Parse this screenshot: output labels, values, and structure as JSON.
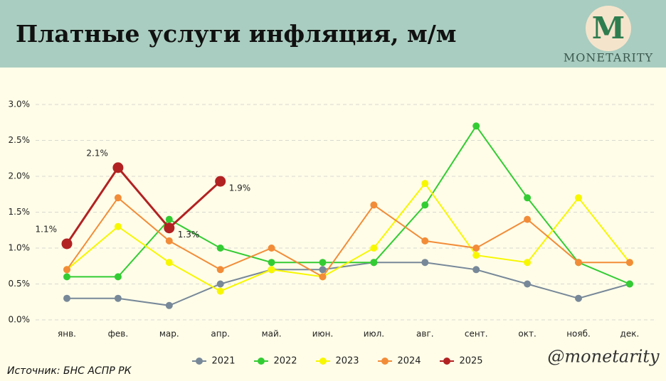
{
  "header": {
    "title": "Платные услуги инфляция, м/м"
  },
  "brand": {
    "letter": "M",
    "name": "MONETARITY",
    "handle": "@monetarity"
  },
  "footer": {
    "source": "Источник: БНС АСПР РК"
  },
  "chart_data": {
    "type": "line",
    "categories": [
      "янв.",
      "фев.",
      "мар.",
      "апр.",
      "май.",
      "июн.",
      "июл.",
      "авг.",
      "сент.",
      "окт.",
      "нояб.",
      "дек."
    ],
    "ylim": [
      0,
      3
    ],
    "yticks": [
      {
        "value": 0,
        "label": "0.0%"
      },
      {
        "value": 0.5,
        "label": "0.5%"
      },
      {
        "value": 1,
        "label": "1.0%"
      },
      {
        "value": 1.5,
        "label": "1.5%"
      },
      {
        "value": 2,
        "label": "2.0%"
      },
      {
        "value": 2.5,
        "label": "2.5%"
      },
      {
        "value": 3,
        "label": "3.0%"
      }
    ],
    "grid": true,
    "legend": "bottom",
    "series": [
      {
        "name": "2021",
        "color": "#778899",
        "values": [
          0.3,
          0.3,
          0.2,
          0.5,
          0.7,
          0.7,
          0.8,
          0.8,
          0.7,
          0.5,
          0.3,
          0.5
        ]
      },
      {
        "name": "2022",
        "color": "#33cc33",
        "values": [
          0.6,
          0.6,
          1.4,
          1.0,
          0.8,
          0.8,
          0.8,
          1.6,
          2.7,
          1.7,
          0.8,
          0.5
        ]
      },
      {
        "name": "2023",
        "color": "#f7f700",
        "values": [
          0.7,
          1.3,
          0.8,
          0.4,
          0.7,
          0.6,
          1.0,
          1.9,
          0.9,
          0.8,
          1.7,
          0.8
        ]
      },
      {
        "name": "2024",
        "color": "#f28c38",
        "values": [
          0.7,
          1.7,
          1.1,
          0.7,
          1.0,
          0.6,
          1.6,
          1.1,
          1.0,
          1.4,
          0.8,
          0.8
        ]
      },
      {
        "name": "2025",
        "color": "#b22222",
        "values": [
          1.06,
          2.12,
          1.28,
          1.93,
          null,
          null,
          null,
          null,
          null,
          null,
          null,
          null
        ],
        "value_labels": [
          "1.1%",
          "2.1%",
          "1.3%",
          "1.9%",
          null,
          null,
          null,
          null,
          null,
          null,
          null,
          null
        ]
      }
    ]
  }
}
